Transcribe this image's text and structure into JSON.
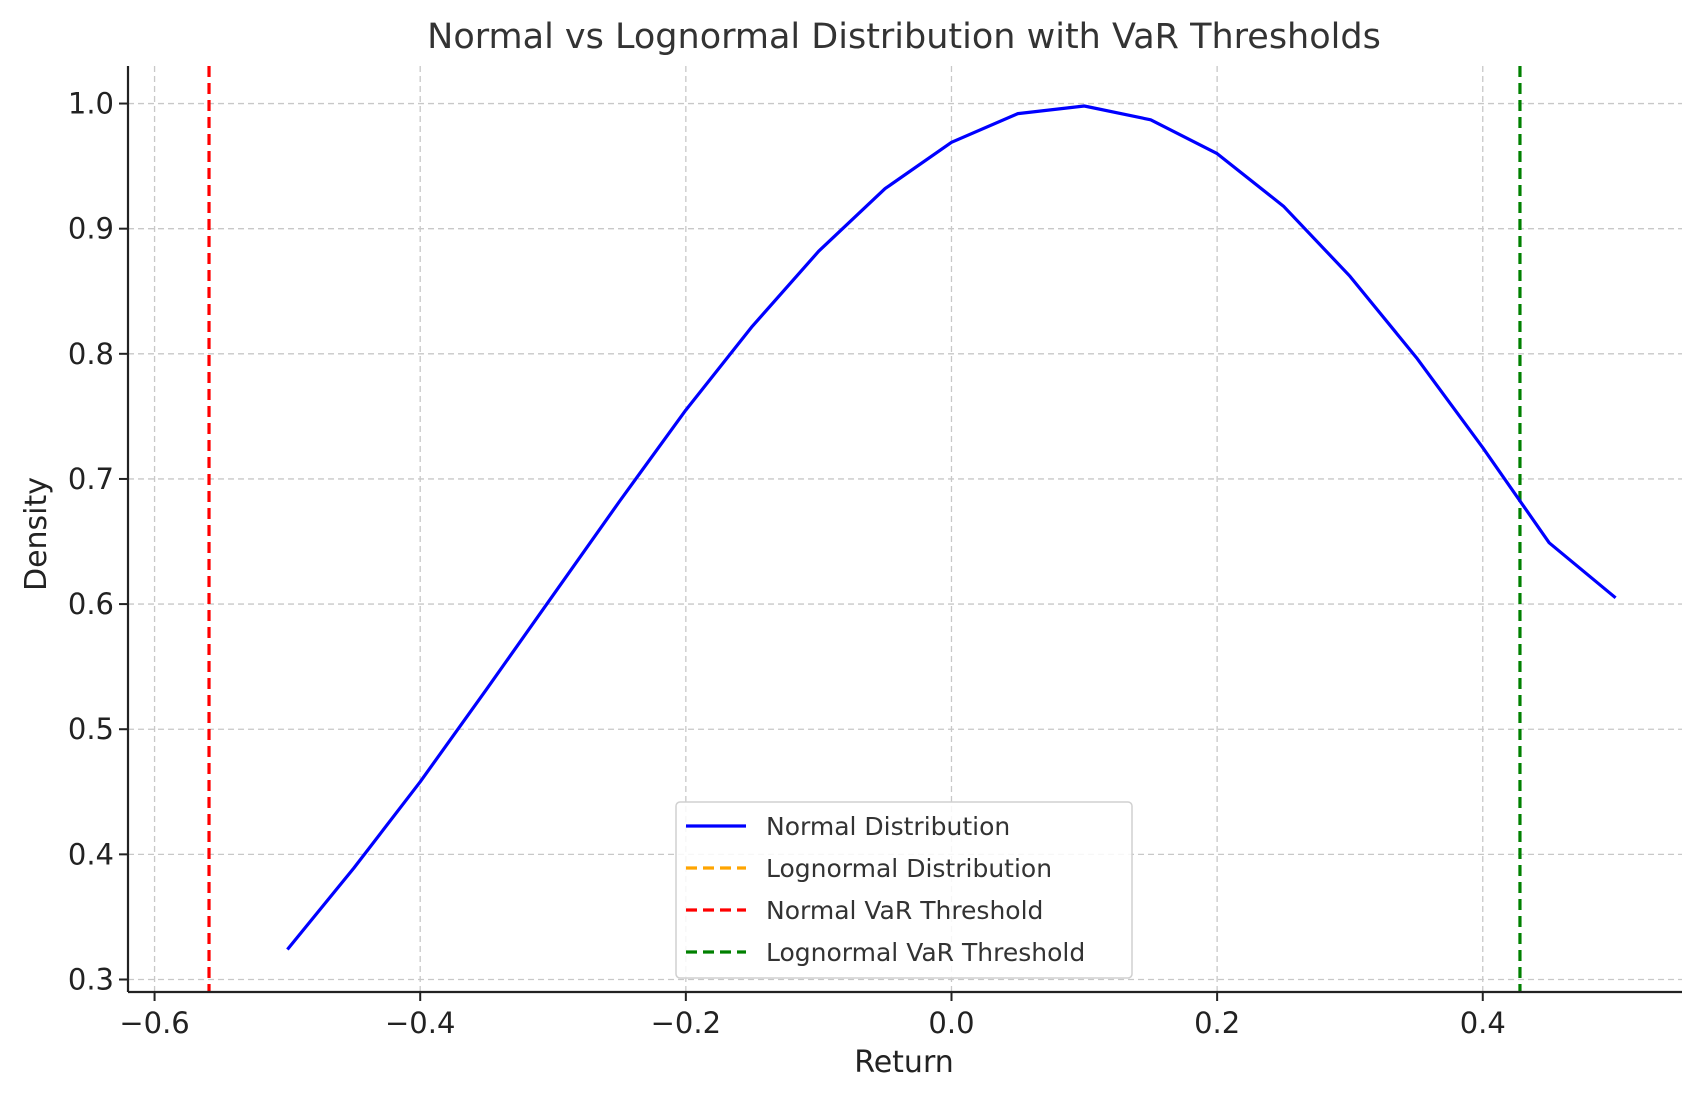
{
  "chart_data": {
    "type": "line",
    "title": "Normal vs Lognormal Distribution with VaR Thresholds",
    "xlabel": "Return",
    "ylabel": "Density",
    "xlim": [
      -0.62,
      0.55
    ],
    "ylim": [
      0.29,
      1.03
    ],
    "x_ticks": [
      -0.6,
      -0.4,
      -0.2,
      0.0,
      0.2,
      0.4
    ],
    "x_tick_labels": [
      "−0.6",
      "−0.4",
      "−0.2",
      "0.0",
      "0.2",
      "0.4"
    ],
    "y_ticks": [
      0.3,
      0.4,
      0.5,
      0.6,
      0.7,
      0.8,
      0.9,
      1.0
    ],
    "y_tick_labels": [
      "0.3",
      "0.4",
      "0.5",
      "0.6",
      "0.7",
      "0.8",
      "0.9",
      "1.0"
    ],
    "grid": true,
    "legend_position": "bottom-center",
    "series": [
      {
        "name": "Normal Distribution",
        "color": "#0000ff",
        "style": "solid",
        "x": [
          -0.5,
          -0.45,
          -0.4,
          -0.35,
          -0.3,
          -0.25,
          -0.2,
          -0.15,
          -0.1,
          -0.05,
          0.0,
          0.05,
          0.1,
          0.15,
          0.2,
          0.25,
          0.3,
          0.35,
          0.4,
          0.45,
          0.5
        ],
        "y": [
          0.324,
          0.389,
          0.458,
          0.532,
          0.607,
          0.682,
          0.755,
          0.822,
          0.882,
          0.932,
          0.969,
          0.992,
          0.998,
          0.987,
          0.96,
          0.918,
          0.862,
          0.797,
          0.725,
          0.649,
          0.605
        ]
      },
      {
        "name": "Lognormal Distribution",
        "color": "#ffa500",
        "style": "dashed",
        "x": [],
        "y": []
      }
    ],
    "vlines": [
      {
        "name": "Normal VaR Threshold",
        "x": -0.559,
        "color": "#ff0000",
        "style": "dashed"
      },
      {
        "name": "Lognormal VaR Threshold",
        "x": 0.428,
        "color": "#008000",
        "style": "dashed"
      }
    ],
    "legend": [
      {
        "label": "Normal Distribution",
        "color": "#0000ff",
        "style": "solid"
      },
      {
        "label": "Lognormal Distribution",
        "color": "#ffa500",
        "style": "dashed"
      },
      {
        "label": "Normal VaR Threshold",
        "color": "#ff0000",
        "style": "dashed"
      },
      {
        "label": "Lognormal VaR Threshold",
        "color": "#008000",
        "style": "dashed"
      }
    ]
  }
}
